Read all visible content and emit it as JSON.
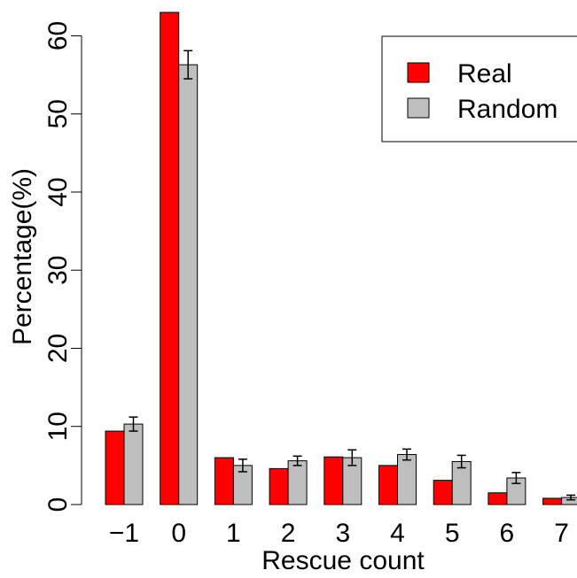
{
  "chart_data": {
    "type": "bar",
    "xlabel": "Rescue count",
    "ylabel": "Percentage(%)",
    "categories": [
      "−1",
      "0",
      "1",
      "2",
      "3",
      "4",
      "5",
      "6",
      "7"
    ],
    "ylim": [
      0,
      63
    ],
    "yticks": [
      0,
      10,
      20,
      30,
      40,
      50,
      60
    ],
    "grid": false,
    "legend_position": "top-right",
    "series": [
      {
        "name": "Real",
        "color": "#ff0000",
        "values": [
          9.4,
          63.0,
          6.0,
          4.6,
          6.1,
          5.0,
          3.1,
          1.5,
          0.8
        ],
        "errors": null
      },
      {
        "name": "Random",
        "color": "#bebebe",
        "values": [
          10.3,
          56.3,
          5.0,
          5.6,
          6.0,
          6.4,
          5.5,
          3.4,
          0.9
        ],
        "errors": [
          0.9,
          1.8,
          0.8,
          0.6,
          1.0,
          0.7,
          0.8,
          0.7,
          0.3
        ]
      }
    ]
  }
}
